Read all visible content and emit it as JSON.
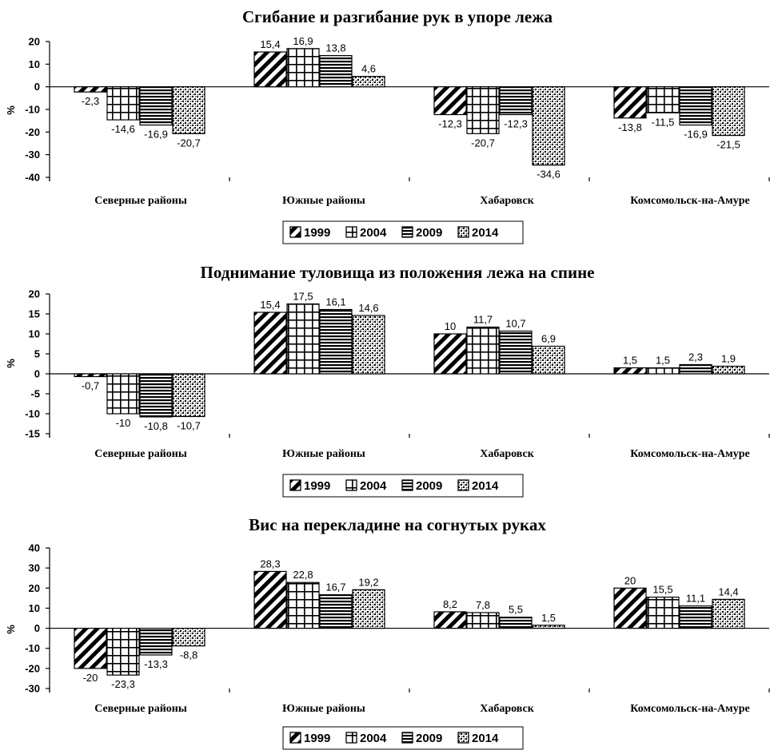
{
  "chart_data": [
    {
      "type": "bar",
      "title": "Сгибание и разгибание рук в упоре лежа",
      "ylabel": "%",
      "ylim": [
        -40,
        20
      ],
      "yticks": [
        20,
        10,
        0,
        -10,
        -20,
        -30,
        -40
      ],
      "categories": [
        "Северные районы",
        "Южные районы",
        "Хабаровск",
        "Комсомольск-на-Амуре"
      ],
      "series": [
        {
          "name": "1999",
          "values": [
            -2.3,
            15.4,
            -12.3,
            -13.8
          ],
          "labels": [
            "-2,3",
            "15,4",
            "-12,3",
            "-13,8"
          ]
        },
        {
          "name": "2004",
          "values": [
            -14.6,
            16.9,
            -20.7,
            -11.5
          ],
          "labels": [
            "-14,6",
            "16,9",
            "-20,7",
            "-11,5"
          ]
        },
        {
          "name": "2009",
          "values": [
            -16.9,
            13.8,
            -12.3,
            -16.9
          ],
          "labels": [
            "-16,9",
            "13,8",
            "-12,3",
            "-16,9"
          ]
        },
        {
          "name": "2014",
          "values": [
            -20.7,
            4.6,
            -34.6,
            -21.5
          ],
          "labels": [
            "-20,7",
            "4,6",
            "-34,6",
            "-21,5"
          ]
        }
      ],
      "legend": "bottom",
      "grid": false
    },
    {
      "type": "bar",
      "title": "Поднимание туловища из положения лежа на спине",
      "ylabel": "%",
      "ylim": [
        -15,
        20
      ],
      "yticks": [
        20,
        15,
        10,
        5,
        0,
        -5,
        -10,
        -15
      ],
      "categories": [
        "Северные районы",
        "Южные районы",
        "Хабаровск",
        "Комсомольск-на-Амуре"
      ],
      "series": [
        {
          "name": "1999",
          "values": [
            -0.7,
            15.4,
            10,
            1.5
          ],
          "labels": [
            "-0,7",
            "15,4",
            "10",
            "1,5"
          ]
        },
        {
          "name": "2004",
          "values": [
            -10,
            17.5,
            11.7,
            1.5
          ],
          "labels": [
            "-10",
            "17,5",
            "11,7",
            "1,5"
          ]
        },
        {
          "name": "2009",
          "values": [
            -10.8,
            16.1,
            10.7,
            2.3
          ],
          "labels": [
            "-10,8",
            "16,1",
            "10,7",
            "2,3"
          ]
        },
        {
          "name": "2014",
          "values": [
            -10.7,
            14.6,
            6.9,
            1.9
          ],
          "labels": [
            "-10,7",
            "14,6",
            "6,9",
            "1,9"
          ]
        }
      ],
      "legend": "bottom",
      "grid": false
    },
    {
      "type": "bar",
      "title": "Вис на перекладине на согнутых руках",
      "ylabel": "%",
      "ylim": [
        -30,
        40
      ],
      "yticks": [
        40,
        30,
        20,
        10,
        0,
        -10,
        -20,
        -30
      ],
      "categories": [
        "Северные районы",
        "Южные районы",
        "Хабаровск",
        "Комсомольск-на-Амуре"
      ],
      "series": [
        {
          "name": "1999",
          "values": [
            -20,
            28.3,
            8.2,
            20
          ],
          "labels": [
            "-20",
            "28,3",
            "8,2",
            "20"
          ]
        },
        {
          "name": "2004",
          "values": [
            -23.3,
            22.8,
            7.8,
            15.5
          ],
          "labels": [
            "-23,3",
            "22,8",
            "7,8",
            "15,5"
          ]
        },
        {
          "name": "2009",
          "values": [
            -13.3,
            16.7,
            5.5,
            11.1
          ],
          "labels": [
            "-13,3",
            "16,7",
            "5,5",
            "11,1"
          ]
        },
        {
          "name": "2014",
          "values": [
            -8.8,
            19.2,
            1.5,
            14.4
          ],
          "labels": [
            "-8,8",
            "19,2",
            "1,5",
            "14,4"
          ]
        }
      ],
      "legend": "bottom",
      "grid": false
    }
  ]
}
